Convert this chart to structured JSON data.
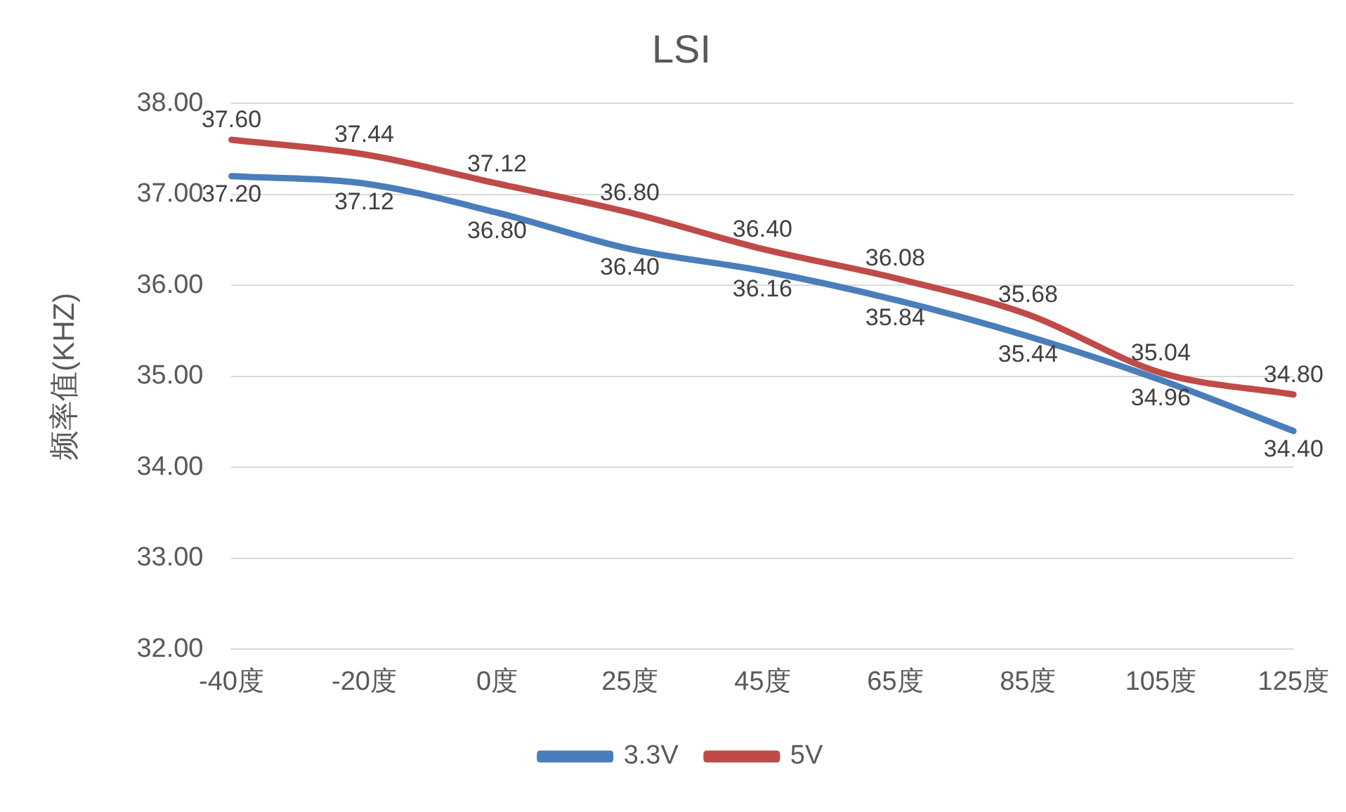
{
  "chart_data": {
    "type": "line",
    "title": "LSI",
    "ylabel": "频率值(KHZ)",
    "categories": [
      "-40度",
      "-20度",
      "0度",
      "25度",
      "45度",
      "65度",
      "85度",
      "105度",
      "125度"
    ],
    "series": [
      {
        "name": "3.3V",
        "color": "#4a7ebb",
        "values": [
          37.2,
          37.12,
          36.8,
          36.4,
          36.16,
          35.84,
          35.44,
          34.96,
          34.4
        ],
        "value_labels": [
          "37.20",
          "37.12",
          "36.80",
          "36.40",
          "36.16",
          "35.84",
          "35.44",
          "34.96",
          "34.40"
        ]
      },
      {
        "name": "5V",
        "color": "#be4b48",
        "values": [
          37.6,
          37.44,
          37.12,
          36.8,
          36.4,
          36.08,
          35.68,
          35.04,
          34.8
        ],
        "value_labels": [
          "37.60",
          "37.44",
          "37.12",
          "36.80",
          "36.40",
          "36.08",
          "35.68",
          "35.04",
          "34.80"
        ]
      }
    ],
    "ylim": [
      32,
      38
    ],
    "yticks": [
      {
        "value": 32,
        "label": "32.00"
      },
      {
        "value": 33,
        "label": "33.00"
      },
      {
        "value": 34,
        "label": "34.00"
      },
      {
        "value": 35,
        "label": "35.00"
      },
      {
        "value": 36,
        "label": "36.00"
      },
      {
        "value": 37,
        "label": "37.00"
      },
      {
        "value": 38,
        "label": "38.00"
      }
    ],
    "grid": "y",
    "legend": "bottom",
    "marker": "none",
    "line_style": "solid"
  }
}
